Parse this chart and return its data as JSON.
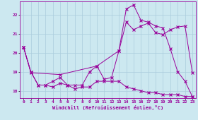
{
  "xlabel": "Windchill (Refroidissement éolien,°C)",
  "bg_color": "#cce8f0",
  "line_color": "#990099",
  "grid_color": "#aaccdd",
  "xlim": [
    -0.5,
    23.5
  ],
  "ylim": [
    17.6,
    22.7
  ],
  "yticks": [
    18,
    19,
    20,
    21,
    22
  ],
  "xticks": [
    0,
    1,
    2,
    3,
    4,
    5,
    6,
    7,
    8,
    9,
    10,
    11,
    12,
    13,
    14,
    15,
    16,
    17,
    18,
    19,
    20,
    21,
    22,
    23
  ],
  "series1_x": [
    0,
    1,
    2,
    3,
    4,
    5,
    6,
    7,
    8,
    9,
    10,
    11,
    12,
    13,
    14,
    15,
    16,
    17,
    18,
    19,
    20,
    21,
    22,
    23
  ],
  "series1_y": [
    20.3,
    19.0,
    18.3,
    18.3,
    18.2,
    18.4,
    18.3,
    18.1,
    18.2,
    18.2,
    18.5,
    18.5,
    18.5,
    18.5,
    18.2,
    18.1,
    18.0,
    17.9,
    17.9,
    17.8,
    17.8,
    17.8,
    17.7,
    17.7
  ],
  "series2_x": [
    0,
    1,
    2,
    3,
    4,
    5,
    6,
    7,
    8,
    9,
    10,
    11,
    12,
    13,
    14,
    15,
    16,
    17,
    18,
    19,
    20,
    21,
    22,
    23
  ],
  "series2_y": [
    20.3,
    19.0,
    18.3,
    18.3,
    18.5,
    18.7,
    18.3,
    18.3,
    18.3,
    19.0,
    19.3,
    18.6,
    18.7,
    20.1,
    22.3,
    22.5,
    21.7,
    21.6,
    21.4,
    21.3,
    20.2,
    19.0,
    18.5,
    17.7
  ],
  "series3_x": [
    0,
    1,
    5,
    10,
    13,
    14,
    15,
    16,
    17,
    18,
    19,
    20,
    21,
    22,
    23
  ],
  "series3_y": [
    20.3,
    18.95,
    18.85,
    19.3,
    20.1,
    21.6,
    21.2,
    21.4,
    21.55,
    21.05,
    20.95,
    21.2,
    21.35,
    21.4,
    18.95
  ]
}
